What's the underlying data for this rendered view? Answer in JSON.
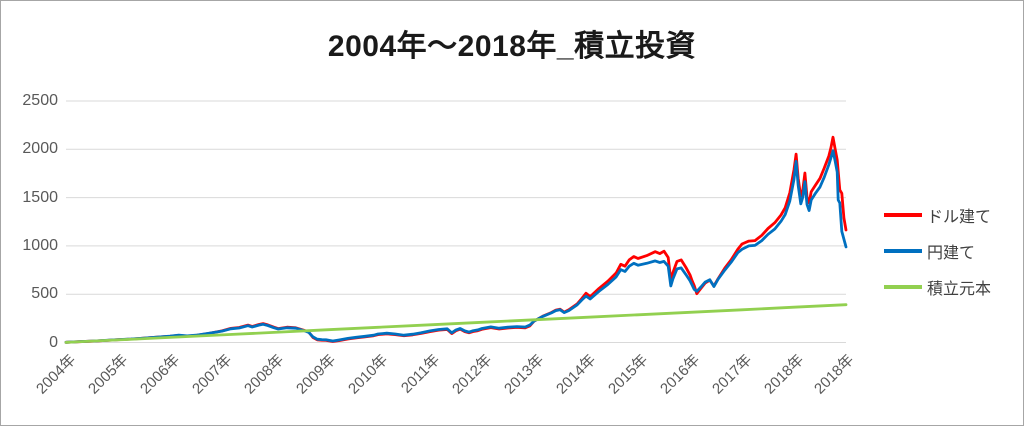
{
  "figure": {
    "background": "#ffffff",
    "border_color": "#a6a6a6"
  },
  "chart_data": {
    "type": "line",
    "title": "2004年〜2018年_積立投資",
    "xlabel": "",
    "ylabel": "",
    "grid": "horizontal",
    "legend_position": "right",
    "colors": {
      "gridline": "#d9d9d9",
      "axis_text": "#595959",
      "title_text": "#1a1a1a",
      "legend_text": "#404040"
    },
    "y_axis": {
      "range": [
        0,
        2500
      ],
      "ticks": [
        0,
        500,
        1000,
        1500,
        2000,
        2500
      ]
    },
    "x_axis": {
      "range_years": [
        2004,
        2019
      ],
      "ticks": [
        {
          "label": "2004年",
          "year": 2004
        },
        {
          "label": "2005年",
          "year": 2005
        },
        {
          "label": "2006年",
          "year": 2006
        },
        {
          "label": "2007年",
          "year": 2007
        },
        {
          "label": "2008年",
          "year": 2008
        },
        {
          "label": "2009年",
          "year": 2009
        },
        {
          "label": "2010年",
          "year": 2010
        },
        {
          "label": "2011年",
          "year": 2011
        },
        {
          "label": "2012年",
          "year": 2012
        },
        {
          "label": "2013年",
          "year": 2013
        },
        {
          "label": "2014年",
          "year": 2014
        },
        {
          "label": "2015年",
          "year": 2015
        },
        {
          "label": "2016年",
          "year": 2016
        },
        {
          "label": "2017年",
          "year": 2017
        },
        {
          "label": "2018年",
          "year": 2018
        },
        {
          "label": "2018年",
          "year": 2018.96
        }
      ]
    },
    "series": [
      {
        "name": "ドル建て",
        "color": "#FF0000",
        "width": 2.8,
        "points": [
          [
            2004.0,
            2
          ],
          [
            2004.25,
            8
          ],
          [
            2004.5,
            13
          ],
          [
            2004.75,
            21
          ],
          [
            2005.0,
            29
          ],
          [
            2005.25,
            35
          ],
          [
            2005.5,
            45
          ],
          [
            2005.75,
            55
          ],
          [
            2006.0,
            64
          ],
          [
            2006.17,
            74
          ],
          [
            2006.33,
            66
          ],
          [
            2006.5,
            74
          ],
          [
            2006.75,
            94
          ],
          [
            2007.0,
            120
          ],
          [
            2007.17,
            146
          ],
          [
            2007.33,
            155
          ],
          [
            2007.5,
            180
          ],
          [
            2007.58,
            166
          ],
          [
            2007.71,
            186
          ],
          [
            2007.79,
            196
          ],
          [
            2007.88,
            182
          ],
          [
            2008.0,
            158
          ],
          [
            2008.08,
            144
          ],
          [
            2008.25,
            158
          ],
          [
            2008.42,
            152
          ],
          [
            2008.58,
            126
          ],
          [
            2008.67,
            108
          ],
          [
            2008.75,
            52
          ],
          [
            2008.83,
            28
          ],
          [
            2008.92,
            24
          ],
          [
            2009.0,
            22
          ],
          [
            2009.13,
            10
          ],
          [
            2009.25,
            20
          ],
          [
            2009.42,
            36
          ],
          [
            2009.58,
            48
          ],
          [
            2009.75,
            58
          ],
          [
            2009.92,
            70
          ],
          [
            2010.0,
            82
          ],
          [
            2010.17,
            90
          ],
          [
            2010.33,
            82
          ],
          [
            2010.5,
            70
          ],
          [
            2010.67,
            80
          ],
          [
            2010.83,
            94
          ],
          [
            2011.0,
            113
          ],
          [
            2011.17,
            128
          ],
          [
            2011.33,
            135
          ],
          [
            2011.42,
            92
          ],
          [
            2011.5,
            122
          ],
          [
            2011.58,
            138
          ],
          [
            2011.67,
            112
          ],
          [
            2011.75,
            100
          ],
          [
            2011.83,
            114
          ],
          [
            2011.92,
            122
          ],
          [
            2012.0,
            137
          ],
          [
            2012.17,
            154
          ],
          [
            2012.33,
            140
          ],
          [
            2012.5,
            150
          ],
          [
            2012.67,
            157
          ],
          [
            2012.83,
            152
          ],
          [
            2012.92,
            172
          ],
          [
            2013.0,
            220
          ],
          [
            2013.17,
            272
          ],
          [
            2013.33,
            310
          ],
          [
            2013.42,
            335
          ],
          [
            2013.5,
            345
          ],
          [
            2013.58,
            315
          ],
          [
            2013.67,
            338
          ],
          [
            2013.83,
            400
          ],
          [
            2013.92,
            455
          ],
          [
            2014.0,
            510
          ],
          [
            2014.08,
            475
          ],
          [
            2014.25,
            560
          ],
          [
            2014.42,
            635
          ],
          [
            2014.58,
            720
          ],
          [
            2014.67,
            810
          ],
          [
            2014.75,
            790
          ],
          [
            2014.83,
            855
          ],
          [
            2014.92,
            890
          ],
          [
            2015.0,
            870
          ],
          [
            2015.17,
            900
          ],
          [
            2015.33,
            940
          ],
          [
            2015.42,
            920
          ],
          [
            2015.5,
            945
          ],
          [
            2015.58,
            880
          ],
          [
            2015.63,
            640
          ],
          [
            2015.67,
            720
          ],
          [
            2015.75,
            840
          ],
          [
            2015.83,
            855
          ],
          [
            2015.92,
            780
          ],
          [
            2016.0,
            700
          ],
          [
            2016.04,
            640
          ],
          [
            2016.08,
            590
          ],
          [
            2016.13,
            505
          ],
          [
            2016.21,
            560
          ],
          [
            2016.29,
            615
          ],
          [
            2016.38,
            645
          ],
          [
            2016.46,
            585
          ],
          [
            2016.54,
            660
          ],
          [
            2016.67,
            770
          ],
          [
            2016.79,
            855
          ],
          [
            2016.92,
            965
          ],
          [
            2017.0,
            1020
          ],
          [
            2017.13,
            1050
          ],
          [
            2017.25,
            1055
          ],
          [
            2017.38,
            1110
          ],
          [
            2017.5,
            1180
          ],
          [
            2017.63,
            1240
          ],
          [
            2017.75,
            1320
          ],
          [
            2017.83,
            1395
          ],
          [
            2017.92,
            1550
          ],
          [
            2018.0,
            1790
          ],
          [
            2018.04,
            1950
          ],
          [
            2018.08,
            1700
          ],
          [
            2018.13,
            1505
          ],
          [
            2018.17,
            1580
          ],
          [
            2018.21,
            1755
          ],
          [
            2018.25,
            1505
          ],
          [
            2018.29,
            1445
          ],
          [
            2018.33,
            1560
          ],
          [
            2018.42,
            1635
          ],
          [
            2018.5,
            1700
          ],
          [
            2018.58,
            1805
          ],
          [
            2018.67,
            1930
          ],
          [
            2018.71,
            2015
          ],
          [
            2018.75,
            2125
          ],
          [
            2018.79,
            2005
          ],
          [
            2018.83,
            1890
          ],
          [
            2018.88,
            1580
          ],
          [
            2018.92,
            1545
          ],
          [
            2018.96,
            1290
          ],
          [
            2019.0,
            1165
          ]
        ]
      },
      {
        "name": "円建て",
        "color": "#0070C0",
        "width": 2.8,
        "points": [
          [
            2004.0,
            2
          ],
          [
            2004.25,
            9
          ],
          [
            2004.5,
            14
          ],
          [
            2004.75,
            22
          ],
          [
            2005.0,
            30
          ],
          [
            2005.25,
            36
          ],
          [
            2005.5,
            46
          ],
          [
            2005.75,
            56
          ],
          [
            2006.0,
            66
          ],
          [
            2006.17,
            76
          ],
          [
            2006.33,
            68
          ],
          [
            2006.5,
            76
          ],
          [
            2006.75,
            96
          ],
          [
            2007.0,
            118
          ],
          [
            2007.17,
            142
          ],
          [
            2007.33,
            150
          ],
          [
            2007.5,
            174
          ],
          [
            2007.58,
            160
          ],
          [
            2007.71,
            180
          ],
          [
            2007.79,
            188
          ],
          [
            2007.88,
            176
          ],
          [
            2008.0,
            152
          ],
          [
            2008.08,
            140
          ],
          [
            2008.25,
            152
          ],
          [
            2008.42,
            148
          ],
          [
            2008.58,
            122
          ],
          [
            2008.67,
            105
          ],
          [
            2008.75,
            58
          ],
          [
            2008.83,
            34
          ],
          [
            2008.92,
            30
          ],
          [
            2009.0,
            28
          ],
          [
            2009.13,
            16
          ],
          [
            2009.25,
            26
          ],
          [
            2009.42,
            42
          ],
          [
            2009.58,
            54
          ],
          [
            2009.75,
            64
          ],
          [
            2009.92,
            76
          ],
          [
            2010.0,
            88
          ],
          [
            2010.17,
            96
          ],
          [
            2010.33,
            88
          ],
          [
            2010.5,
            76
          ],
          [
            2010.67,
            86
          ],
          [
            2010.83,
            100
          ],
          [
            2011.0,
            120
          ],
          [
            2011.17,
            135
          ],
          [
            2011.33,
            142
          ],
          [
            2011.42,
            100
          ],
          [
            2011.5,
            130
          ],
          [
            2011.58,
            145
          ],
          [
            2011.67,
            120
          ],
          [
            2011.75,
            108
          ],
          [
            2011.83,
            122
          ],
          [
            2011.92,
            130
          ],
          [
            2012.0,
            145
          ],
          [
            2012.17,
            162
          ],
          [
            2012.33,
            148
          ],
          [
            2012.5,
            158
          ],
          [
            2012.67,
            165
          ],
          [
            2012.83,
            160
          ],
          [
            2012.92,
            180
          ],
          [
            2013.0,
            222
          ],
          [
            2013.17,
            270
          ],
          [
            2013.33,
            305
          ],
          [
            2013.42,
            330
          ],
          [
            2013.5,
            340
          ],
          [
            2013.58,
            310
          ],
          [
            2013.67,
            330
          ],
          [
            2013.83,
            390
          ],
          [
            2013.92,
            440
          ],
          [
            2014.0,
            480
          ],
          [
            2014.08,
            450
          ],
          [
            2014.25,
            530
          ],
          [
            2014.42,
            600
          ],
          [
            2014.58,
            680
          ],
          [
            2014.67,
            755
          ],
          [
            2014.75,
            735
          ],
          [
            2014.83,
            790
          ],
          [
            2014.92,
            820
          ],
          [
            2015.0,
            800
          ],
          [
            2015.17,
            820
          ],
          [
            2015.33,
            845
          ],
          [
            2015.42,
            828
          ],
          [
            2015.5,
            840
          ],
          [
            2015.58,
            790
          ],
          [
            2015.63,
            585
          ],
          [
            2015.67,
            655
          ],
          [
            2015.75,
            762
          ],
          [
            2015.83,
            772
          ],
          [
            2015.92,
            705
          ],
          [
            2016.0,
            640
          ],
          [
            2016.04,
            595
          ],
          [
            2016.08,
            550
          ],
          [
            2016.13,
            530
          ],
          [
            2016.21,
            575
          ],
          [
            2016.29,
            625
          ],
          [
            2016.38,
            650
          ],
          [
            2016.46,
            580
          ],
          [
            2016.54,
            655
          ],
          [
            2016.67,
            750
          ],
          [
            2016.79,
            830
          ],
          [
            2016.92,
            930
          ],
          [
            2017.0,
            965
          ],
          [
            2017.13,
            1000
          ],
          [
            2017.25,
            1005
          ],
          [
            2017.38,
            1055
          ],
          [
            2017.5,
            1120
          ],
          [
            2017.63,
            1175
          ],
          [
            2017.75,
            1255
          ],
          [
            2017.83,
            1325
          ],
          [
            2017.92,
            1465
          ],
          [
            2018.0,
            1690
          ],
          [
            2018.04,
            1875
          ],
          [
            2018.08,
            1625
          ],
          [
            2018.13,
            1435
          ],
          [
            2018.17,
            1505
          ],
          [
            2018.21,
            1665
          ],
          [
            2018.25,
            1430
          ],
          [
            2018.29,
            1365
          ],
          [
            2018.33,
            1475
          ],
          [
            2018.42,
            1550
          ],
          [
            2018.5,
            1610
          ],
          [
            2018.58,
            1710
          ],
          [
            2018.67,
            1840
          ],
          [
            2018.71,
            1910
          ],
          [
            2018.75,
            1985
          ],
          [
            2018.79,
            1880
          ],
          [
            2018.83,
            1765
          ],
          [
            2018.85,
            1475
          ],
          [
            2018.88,
            1445
          ],
          [
            2018.92,
            1150
          ],
          [
            2019.0,
            990
          ]
        ]
      },
      {
        "name": "積立元本",
        "color": "#92D050",
        "width": 2.8,
        "points": [
          [
            2004.0,
            1
          ],
          [
            2005.0,
            27
          ],
          [
            2006.0,
            53
          ],
          [
            2007.0,
            79
          ],
          [
            2008.0,
            105
          ],
          [
            2009.0,
            131
          ],
          [
            2010.0,
            157
          ],
          [
            2011.0,
            183
          ],
          [
            2012.0,
            209
          ],
          [
            2013.0,
            235
          ],
          [
            2014.0,
            261
          ],
          [
            2015.0,
            287
          ],
          [
            2016.0,
            313
          ],
          [
            2017.0,
            339
          ],
          [
            2018.0,
            365
          ],
          [
            2019.0,
            391
          ]
        ]
      }
    ]
  }
}
